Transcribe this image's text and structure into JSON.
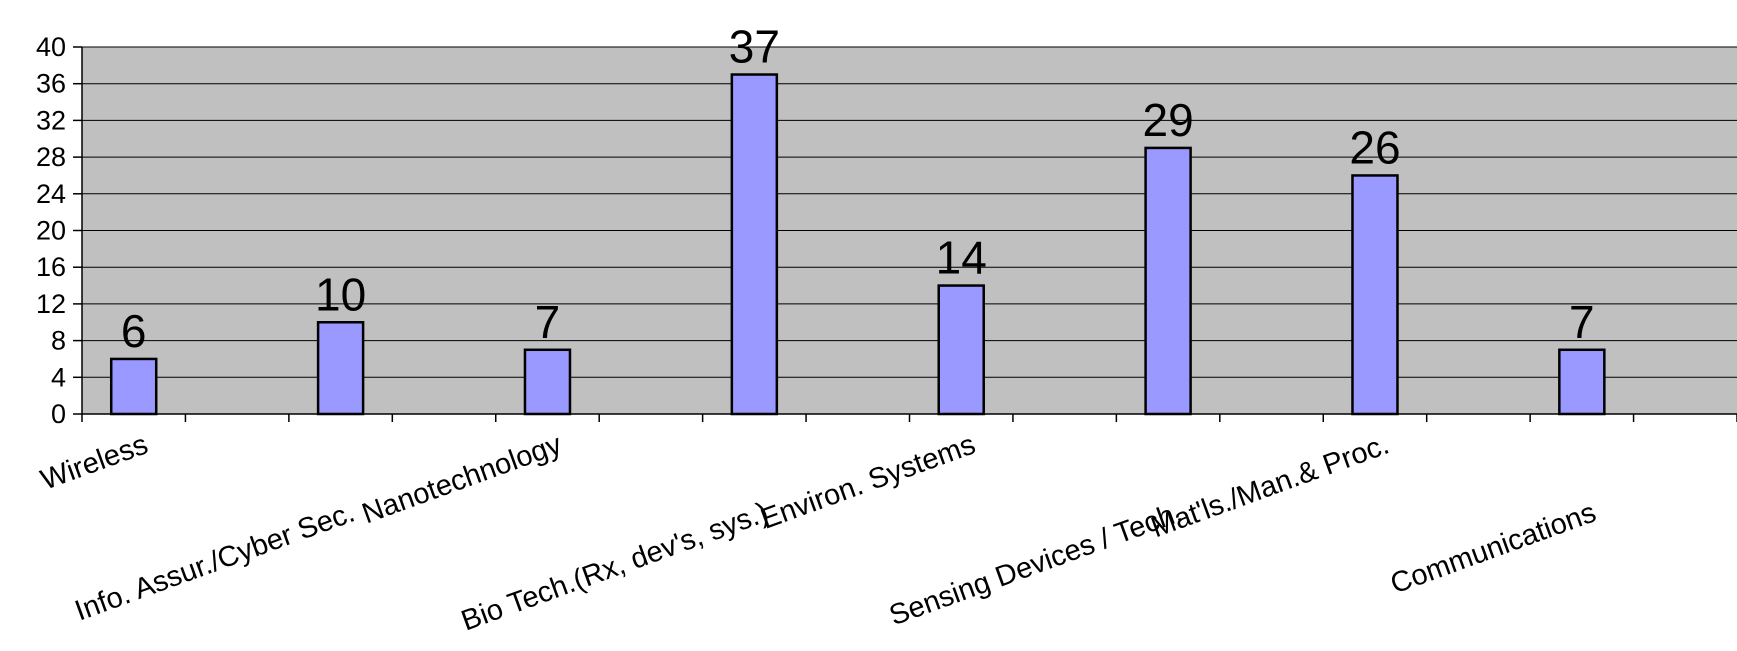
{
  "chart_data": {
    "type": "bar",
    "categories": [
      "Wireless",
      "Info. Assur./Cyber Sec.",
      "Nanotechnology",
      "Bio Tech.(Rx, dev's, sys.)",
      "Environ. Systems",
      "Sensing Devices / Tech.",
      "Mat'ls./Man.& Proc.",
      "Communications"
    ],
    "values": [
      6,
      10,
      7,
      37,
      14,
      29,
      26,
      7
    ],
    "data_labels": [
      "6",
      "10",
      "7",
      "37",
      "14",
      "29",
      "26",
      "7"
    ],
    "ylim": [
      0,
      40
    ],
    "yticks": [
      "0",
      "4",
      "8",
      "12",
      "16",
      "20",
      "24",
      "28",
      "32",
      "36",
      "40"
    ],
    "grid": true,
    "legend": "none",
    "colors": {
      "bar": "#9999ff",
      "bar_edge": "#000000",
      "plot_bg": "#c0c0c0"
    }
  }
}
